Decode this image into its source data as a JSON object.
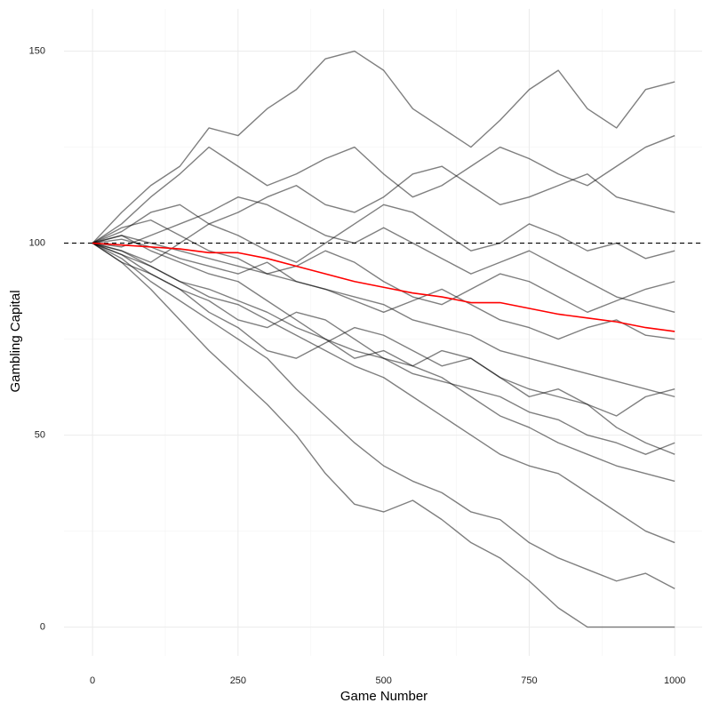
{
  "chart_data": {
    "type": "line",
    "xlabel": "Game Number",
    "ylabel": "Gambling Capital",
    "x": [
      0,
      50,
      100,
      150,
      200,
      250,
      300,
      350,
      400,
      450,
      500,
      550,
      600,
      650,
      700,
      750,
      800,
      850,
      900,
      950,
      1000
    ],
    "xlim": [
      -49,
      1047
    ],
    "ylim": [
      -7.5,
      161
    ],
    "xticks": [
      0,
      250,
      500,
      750,
      1000
    ],
    "yticks": [
      0,
      50,
      100,
      150
    ],
    "x_minor_ticks": [
      125,
      375,
      625,
      875
    ],
    "y_minor_ticks": [
      25,
      75,
      125
    ],
    "grid": true,
    "hline": 100,
    "opacity": 0.5,
    "series": [
      {
        "color": "#000000",
        "values": [
          100,
          108,
          115,
          120,
          130,
          128,
          135,
          140,
          148,
          150,
          145,
          135,
          130,
          125,
          132,
          140,
          145,
          135,
          130,
          140,
          142
        ]
      },
      {
        "color": "#000000",
        "values": [
          100,
          105,
          112,
          118,
          125,
          120,
          115,
          118,
          122,
          125,
          118,
          112,
          115,
          120,
          125,
          122,
          118,
          115,
          120,
          125,
          128
        ]
      },
      {
        "color": "#000000",
        "values": [
          100,
          96,
          90,
          85,
          80,
          75,
          70,
          62,
          55,
          48,
          42,
          38,
          35,
          30,
          28,
          22,
          18,
          15,
          12,
          14,
          10
        ]
      },
      {
        "color": "#000000",
        "values": [
          100,
          95,
          88,
          80,
          72,
          65,
          58,
          50,
          40,
          32,
          30,
          33,
          28,
          22,
          18,
          12,
          5,
          0,
          0,
          0,
          0
        ]
      },
      {
        "color": "#000000",
        "values": [
          100,
          102,
          98,
          95,
          92,
          90,
          85,
          80,
          75,
          70,
          72,
          68,
          65,
          60,
          55,
          52,
          48,
          45,
          42,
          40,
          38
        ]
      },
      {
        "color": "#000000",
        "values": [
          100,
          98,
          95,
          100,
          105,
          102,
          98,
          95,
          100,
          105,
          110,
          108,
          103,
          98,
          100,
          105,
          102,
          98,
          100,
          96,
          98
        ]
      },
      {
        "color": "#000000",
        "values": [
          100,
          97,
          92,
          88,
          85,
          80,
          78,
          82,
          80,
          75,
          70,
          68,
          72,
          70,
          65,
          62,
          60,
          58,
          55,
          60,
          62
        ]
      },
      {
        "color": "#000000",
        "values": [
          100,
          103,
          108,
          110,
          105,
          108,
          112,
          115,
          110,
          108,
          112,
          118,
          120,
          115,
          110,
          112,
          115,
          118,
          112,
          110,
          108
        ]
      },
      {
        "color": "#000000",
        "values": [
          100,
          98,
          94,
          90,
          86,
          84,
          80,
          76,
          72,
          68,
          65,
          60,
          55,
          50,
          45,
          42,
          40,
          35,
          30,
          25,
          22
        ]
      },
      {
        "color": "#000000",
        "values": [
          100,
          101,
          99,
          96,
          94,
          92,
          95,
          90,
          88,
          85,
          82,
          85,
          88,
          84,
          80,
          78,
          75,
          78,
          80,
          76,
          75
        ]
      },
      {
        "color": "#000000",
        "values": [
          100,
          104,
          106,
          102,
          98,
          96,
          92,
          94,
          98,
          95,
          90,
          86,
          84,
          88,
          92,
          90,
          86,
          82,
          85,
          88,
          90
        ]
      },
      {
        "color": "#000000",
        "values": [
          100,
          95,
          92,
          88,
          82,
          78,
          72,
          70,
          74,
          78,
          76,
          72,
          68,
          70,
          65,
          60,
          62,
          58,
          52,
          48,
          45
        ]
      },
      {
        "color": "#000000",
        "values": [
          100,
          99,
          102,
          105,
          108,
          112,
          110,
          106,
          102,
          100,
          104,
          100,
          96,
          92,
          95,
          98,
          94,
          90,
          86,
          84,
          82
        ]
      },
      {
        "color": "#000000",
        "values": [
          100,
          97,
          94,
          90,
          88,
          85,
          82,
          78,
          75,
          72,
          70,
          66,
          64,
          62,
          60,
          56,
          54,
          50,
          48,
          45,
          48
        ]
      },
      {
        "color": "#000000",
        "values": [
          100,
          102,
          100,
          98,
          96,
          94,
          92,
          90,
          88,
          86,
          84,
          80,
          78,
          76,
          72,
          70,
          68,
          66,
          64,
          62,
          60
        ]
      },
      {
        "color": "#ff0000",
        "values": [
          100,
          99.5,
          99,
          98.5,
          97.5,
          97.5,
          96,
          94,
          92,
          90,
          88.5,
          87,
          86,
          84.5,
          84.5,
          83,
          81.5,
          80.5,
          79.5,
          78,
          77
        ]
      }
    ]
  }
}
